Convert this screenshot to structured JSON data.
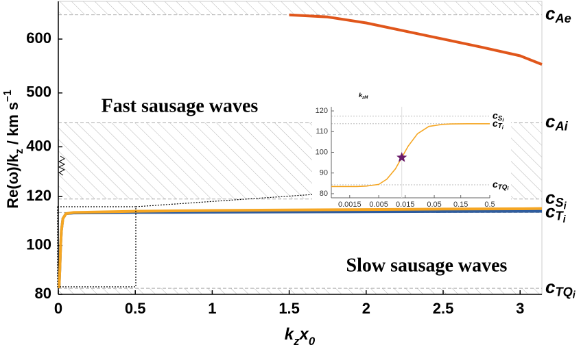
{
  "chart_data": [
    {
      "type": "line",
      "xlim": [
        0,
        3.1416
      ],
      "ylim": [
        365,
        670
      ],
      "yticks": [
        400,
        500,
        600
      ],
      "series": [
        {
          "color": "#e0561b",
          "x": [
            1.5,
            1.75,
            2.0,
            2.25,
            2.5,
            2.75,
            3.0,
            3.1416
          ],
          "values": [
            645,
            641,
            630,
            615,
            600,
            585,
            569,
            553
          ]
        }
      ],
      "speed_lines": [
        {
          "value": 645,
          "symbol": "c",
          "subscript": "Ae"
        },
        {
          "value": 445,
          "symbol": "c",
          "subscript": "Ai"
        }
      ],
      "annotation": "Fast sausage waves"
    },
    {
      "type": "line",
      "xlim": [
        0,
        3.1416
      ],
      "xticks": [
        0,
        0.5,
        1,
        1.5,
        2,
        2.5,
        3
      ],
      "ylim": [
        80,
        122
      ],
      "yticks": [
        80,
        100,
        120
      ],
      "xlabel": [
        {
          "text": "k"
        },
        {
          "text": "z",
          "sub": true
        },
        {
          "text": "x"
        },
        {
          "text": "0",
          "sub": true
        }
      ],
      "ylabel": [
        {
          "text": "Re(ω)/k"
        },
        {
          "text": "z",
          "sub": true
        },
        {
          "text": " / km s"
        },
        {
          "text": "−1",
          "sup": true
        }
      ],
      "series": [
        {
          "color": "#2e5c9e",
          "x": [
            0.005,
            0.01,
            0.015,
            0.02,
            0.03,
            0.05,
            0.1,
            0.5,
            1,
            1.5,
            2,
            2.5,
            3,
            3.1416
          ],
          "values": [
            82.5,
            90,
            100,
            106,
            111,
            113,
            113.3,
            113.5,
            113.6,
            113.7,
            113.8,
            113.9,
            114,
            114
          ]
        },
        {
          "color": "#f5a623",
          "x": [
            0.005,
            0.01,
            0.015,
            0.02,
            0.03,
            0.05,
            0.1,
            0.5,
            1,
            1.5,
            2,
            2.5,
            3,
            3.1416
          ],
          "values": [
            82.5,
            90,
            100,
            106,
            111,
            113,
            113.5,
            114,
            114.3,
            114.5,
            114.7,
            114.9,
            115,
            115.1
          ]
        }
      ],
      "speed_lines": [
        {
          "value": 119,
          "symbol": "c",
          "subscript": "S",
          "subsubscript": "i"
        },
        {
          "value": 113.5,
          "symbol": "c",
          "subscript": "T",
          "subsubscript": "i"
        },
        {
          "value": 82.5,
          "symbol": "c",
          "subscript": "TQ",
          "subsubscript": "i"
        }
      ],
      "annotation": "Slow sausage waves"
    },
    {
      "type": "line",
      "log_x": true,
      "xlim": [
        0.0007,
        0.5
      ],
      "xticks": [
        0.0015,
        0.005,
        0.015,
        0.05,
        0.15,
        0.5
      ],
      "ylim": [
        78,
        122
      ],
      "yticks": [
        80,
        90,
        100,
        110,
        120
      ],
      "series": [
        {
          "color": "#f5a623",
          "x": [
            0.0007,
            0.001,
            0.002,
            0.003,
            0.005,
            0.007,
            0.01,
            0.013,
            0.017,
            0.025,
            0.04,
            0.07,
            0.1,
            0.2,
            0.5
          ],
          "values": [
            83.5,
            83.5,
            83.5,
            83.7,
            84.5,
            87,
            92,
            97.5,
            103,
            109,
            112.5,
            113.5,
            113.7,
            113.8,
            113.8
          ]
        }
      ],
      "marker": {
        "x": 0.013,
        "y": 97.5,
        "color": "#6a1b6a"
      },
      "marker_label": {
        "symbol": "k",
        "subscript": "zM"
      },
      "speed_lines": [
        {
          "value": 117.5,
          "symbol": "c",
          "subscript": "S",
          "subsubscript": "i"
        },
        {
          "value": 113.8,
          "symbol": "c",
          "subscript": "T",
          "subsubscript": "i"
        },
        {
          "value": 84.3,
          "symbol": "c",
          "subscript": "TQ",
          "subsubscript": "i"
        }
      ]
    }
  ]
}
